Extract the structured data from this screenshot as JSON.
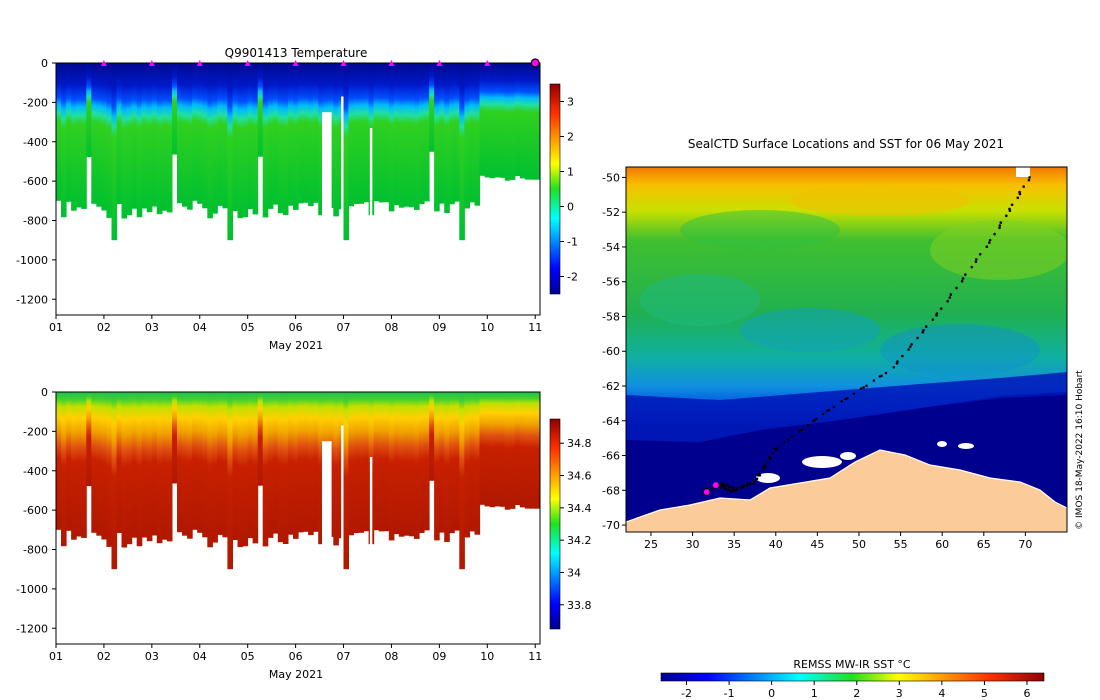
{
  "chart_data": [
    {
      "type": "heatmap",
      "title": "Q9901413  Temperature",
      "xlabel": "May 2021",
      "ylabel": "",
      "x_ticks": [
        "01",
        "02",
        "03",
        "04",
        "05",
        "06",
        "07",
        "08",
        "09",
        "10",
        "11"
      ],
      "xlim": [
        1,
        11.1
      ],
      "y_ticks": [
        0,
        -200,
        -400,
        -600,
        -800,
        -1000,
        -1200
      ],
      "ylim": [
        -1280,
        0
      ],
      "colorbar": {
        "ticks": [
          3,
          2,
          1,
          0,
          -1,
          -2
        ],
        "range": [
          -2.5,
          3.5
        ],
        "colormap": "jet"
      },
      "profile_markers_day": [
        2,
        3,
        4,
        5,
        6,
        7,
        8,
        9,
        10
      ],
      "last_profile_marker_day": 11
    },
    {
      "type": "heatmap",
      "title": "",
      "xlabel": "May 2021",
      "ylabel": "",
      "x_ticks": [
        "01",
        "02",
        "03",
        "04",
        "05",
        "06",
        "07",
        "08",
        "09",
        "10",
        "11"
      ],
      "xlim": [
        1,
        11.1
      ],
      "y_ticks": [
        0,
        -200,
        -400,
        -600,
        -800,
        -1000,
        -1200
      ],
      "ylim": [
        -1280,
        0
      ],
      "colorbar": {
        "ticks": [
          34.8,
          34.6,
          34.4,
          34.2,
          34,
          33.8
        ],
        "range": [
          33.65,
          34.95
        ],
        "colormap": "jet"
      }
    },
    {
      "type": "heatmap",
      "title": "SealCTD Surface Locations and SST for 06 May 2021",
      "xlabel": "",
      "ylabel": "",
      "x_ticks": [
        25,
        30,
        35,
        40,
        45,
        50,
        55,
        60,
        65,
        70
      ],
      "xlim": [
        22,
        75
      ],
      "y_ticks": [
        -50,
        -52,
        -54,
        -56,
        -58,
        -60,
        -62,
        -64,
        -66,
        -68,
        -70
      ],
      "ylim": [
        -70.4,
        -49.4
      ],
      "colorbar": {
        "label": "REMSS MW-IR SST °C",
        "ticks": [
          -2,
          -1,
          0,
          1,
          2,
          3,
          4,
          5,
          6
        ],
        "range": [
          -2.6,
          6.4
        ],
        "colormap": "jet"
      },
      "track_start": {
        "lon": 70.5,
        "lat": -50
      },
      "track_end": {
        "lon": 32.5,
        "lat": -67.8
      },
      "credit": "© IMOS 18-May-2022 16:10 Hobart"
    }
  ],
  "colors": {
    "deep_blue": "#00008f",
    "blue": "#0030ff",
    "cyan": "#00d8ff",
    "green": "#00d040",
    "yellow": "#ffe000",
    "orange": "#ff8000",
    "red": "#b01000",
    "land": "#fbcb99",
    "marker": "#ff00ff"
  }
}
